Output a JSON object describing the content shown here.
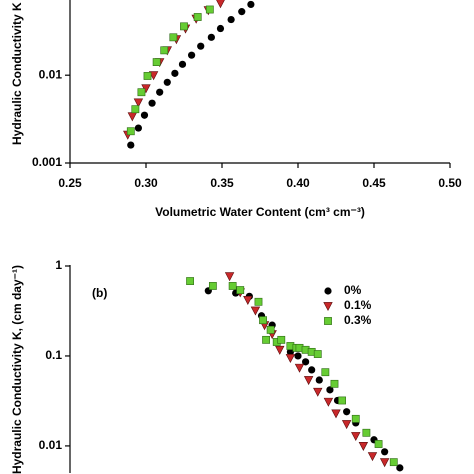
{
  "chart_data": [
    {
      "type": "scatter",
      "log_y": true,
      "x_label": "Volumetric Water Content (cm³ cm⁻³)",
      "y_label": "Hydraulic Conductivity K",
      "xlim": [
        0.25,
        0.5
      ],
      "ylim": [
        0.001,
        0.07
      ],
      "xticks": [
        0.25,
        {
          "value": 0.3,
          "label": "0.30"
        },
        0.35,
        {
          "value": 0.4,
          "label": "0.40"
        },
        0.45,
        {
          "value": 0.5,
          "label": "0.50"
        }
      ],
      "yticks": [
        0.001,
        0.01
      ],
      "series": [
        {
          "marker": "circle",
          "color": "#000000",
          "x": [
            0.29,
            0.295,
            0.299,
            0.304,
            0.309,
            0.314,
            0.319,
            0.324,
            0.33,
            0.336,
            0.343,
            0.349,
            0.356,
            0.363,
            0.369
          ],
          "values": [
            0.0016,
            0.0025,
            0.0035,
            0.0048,
            0.0064,
            0.0083,
            0.0105,
            0.0133,
            0.0169,
            0.0214,
            0.027,
            0.034,
            0.043,
            0.053,
            0.064
          ]
        },
        {
          "marker": "triangle",
          "color": "#c8282a",
          "x": [
            0.288,
            0.291,
            0.295,
            0.3,
            0.305,
            0.309,
            0.314,
            0.32,
            0.326,
            0.333,
            0.341,
            0.349
          ],
          "values": [
            0.0021,
            0.0034,
            0.0049,
            0.0071,
            0.01,
            0.0141,
            0.0192,
            0.0257,
            0.034,
            0.044,
            0.055,
            0.066
          ]
        },
        {
          "marker": "square",
          "color": "#66cc33",
          "x": [
            0.29,
            0.293,
            0.297,
            0.301,
            0.307,
            0.312,
            0.318,
            0.325,
            0.334,
            0.342
          ],
          "values": [
            0.0023,
            0.0041,
            0.0064,
            0.0098,
            0.0141,
            0.0192,
            0.027,
            0.036,
            0.046,
            0.056
          ]
        }
      ]
    },
    {
      "type": "scatter",
      "log_y": true,
      "title": "(b)",
      "y_label": "Hydraulic Conductivity K, (cm day⁻¹)",
      "xlim": [
        0.25,
        0.5
      ],
      "ylim": [
        0.005,
        1
      ],
      "yticks": [
        0.01,
        0.1,
        1
      ],
      "legend": "upper right",
      "series": [
        {
          "name": "0%",
          "marker": "circle",
          "color": "#000000",
          "x": [
            0.341,
            0.359,
            0.368,
            0.376,
            0.383,
            0.389,
            0.395,
            0.4,
            0.405,
            0.409,
            0.414,
            0.421,
            0.426,
            0.432,
            0.438,
            0.445,
            0.45,
            0.457,
            0.467
          ],
          "values": [
            0.53,
            0.5,
            0.46,
            0.28,
            0.22,
            0.151,
            0.111,
            0.1,
            0.086,
            0.07,
            0.054,
            0.042,
            0.032,
            0.024,
            0.018,
            0.014,
            0.0117,
            0.0086,
            0.0057
          ]
        },
        {
          "name": "0.1%",
          "marker": "triangle",
          "color": "#c8282a",
          "x": [
            0.355,
            0.362,
            0.367,
            0.372,
            0.378,
            0.383,
            0.388,
            0.395,
            0.401,
            0.407,
            0.413,
            0.42,
            0.425,
            0.432,
            0.438,
            0.443,
            0.449,
            0.457
          ],
          "values": [
            0.77,
            0.51,
            0.42,
            0.32,
            0.22,
            0.175,
            0.117,
            0.095,
            0.074,
            0.054,
            0.04,
            0.031,
            0.023,
            0.0175,
            0.0129,
            0.01,
            0.0077,
            0.0066
          ]
        },
        {
          "name": "0.3%",
          "marker": "square",
          "color": "#66cc33",
          "x": [
            0.329,
            0.344,
            0.357,
            0.362,
            0.374,
            0.377,
            0.382,
            0.379,
            0.386,
            0.389,
            0.395,
            0.399,
            0.401,
            0.405,
            0.409,
            0.413,
            0.418,
            0.424,
            0.429,
            0.438,
            0.445,
            0.453,
            0.463
          ],
          "values": [
            0.68,
            0.6,
            0.6,
            0.54,
            0.4,
            0.25,
            0.195,
            0.151,
            0.143,
            0.151,
            0.129,
            0.123,
            0.123,
            0.117,
            0.111,
            0.105,
            0.066,
            0.049,
            0.032,
            0.02,
            0.014,
            0.0105,
            0.0066
          ]
        }
      ]
    }
  ]
}
